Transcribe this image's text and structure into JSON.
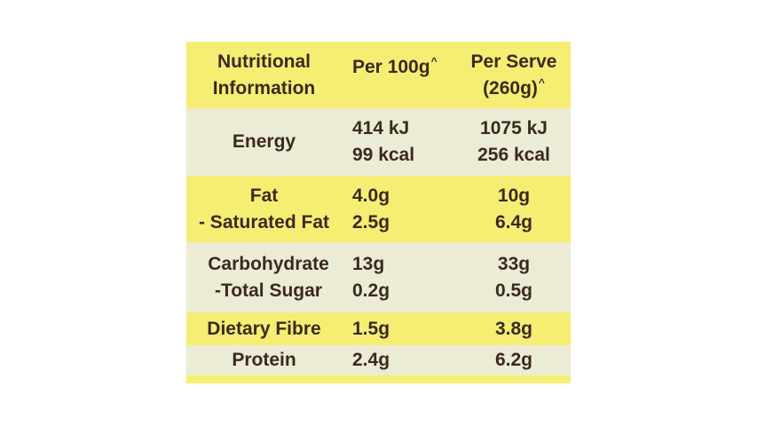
{
  "header": {
    "col1_line1": "Nutritional",
    "col1_line2": "Information",
    "col2_line1": "Per 100g",
    "col2_sup": "^",
    "col3_line1": "Per Serve",
    "col3_line2": "(260g)",
    "col3_sup": "^"
  },
  "rows": [
    {
      "name_lines": [
        "Energy"
      ],
      "per100_lines": [
        "414 kJ",
        "99 kcal"
      ],
      "serve_lines": [
        "1075 kJ",
        "256 kcal"
      ]
    },
    {
      "name_lines": [
        "Fat",
        "- Saturated Fat"
      ],
      "per100_lines": [
        "4.0g",
        "2.5g"
      ],
      "serve_lines": [
        "10g",
        "6.4g"
      ]
    },
    {
      "name_lines": [
        "Carbohydrate",
        "-Total Sugar"
      ],
      "per100_lines": [
        "13g",
        "0.2g"
      ],
      "serve_lines": [
        "33g",
        "0.5g"
      ]
    },
    {
      "name_lines": [
        "Dietary Fibre"
      ],
      "per100_lines": [
        "1.5g"
      ],
      "serve_lines": [
        "3.8g"
      ]
    },
    {
      "name_lines": [
        "Protein"
      ],
      "per100_lines": [
        "2.4g"
      ],
      "serve_lines": [
        "6.2g"
      ]
    }
  ],
  "colors": {
    "yellow": "#f6ee73",
    "cream": "#ecebd5",
    "text": "#3a2a1e"
  }
}
